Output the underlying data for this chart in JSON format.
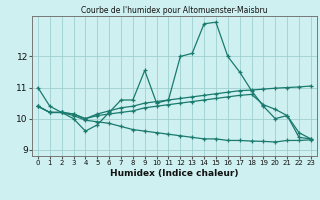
{
  "title": "Courbe de l'humidex pour Altomuenster-Maisbru",
  "xlabel": "Humidex (Indice chaleur)",
  "ylabel": "",
  "background_color": "#cff0f0",
  "grid_color": "#a0cfcf",
  "line_color": "#1a7a6e",
  "xlim": [
    -0.5,
    23.5
  ],
  "ylim": [
    8.8,
    13.3
  ],
  "yticks": [
    9,
    10,
    11,
    12
  ],
  "xticks": [
    0,
    1,
    2,
    3,
    4,
    5,
    6,
    7,
    8,
    9,
    10,
    11,
    12,
    13,
    14,
    15,
    16,
    17,
    18,
    19,
    20,
    21,
    22,
    23
  ],
  "lines": [
    [
      11.0,
      10.4,
      10.2,
      10.0,
      9.6,
      9.8,
      10.2,
      10.6,
      10.6,
      11.55,
      10.5,
      10.6,
      12.0,
      12.1,
      13.05,
      13.1,
      12.0,
      11.5,
      10.9,
      10.4,
      10.0,
      10.1,
      9.4,
      9.35
    ],
    [
      10.4,
      10.2,
      10.2,
      10.15,
      10.0,
      10.15,
      10.25,
      10.35,
      10.4,
      10.5,
      10.55,
      10.6,
      10.65,
      10.7,
      10.75,
      10.8,
      10.85,
      10.9,
      10.92,
      10.95,
      10.98,
      11.0,
      11.02,
      11.05
    ],
    [
      10.4,
      10.2,
      10.2,
      10.15,
      10.0,
      10.1,
      10.15,
      10.2,
      10.25,
      10.35,
      10.4,
      10.45,
      10.5,
      10.55,
      10.6,
      10.65,
      10.7,
      10.75,
      10.78,
      10.45,
      10.3,
      10.1,
      9.55,
      9.35
    ],
    [
      10.4,
      10.2,
      10.2,
      10.1,
      9.95,
      9.9,
      9.85,
      9.75,
      9.65,
      9.6,
      9.55,
      9.5,
      9.45,
      9.4,
      9.35,
      9.35,
      9.3,
      9.3,
      9.28,
      9.27,
      9.25,
      9.3,
      9.3,
      9.32
    ]
  ]
}
